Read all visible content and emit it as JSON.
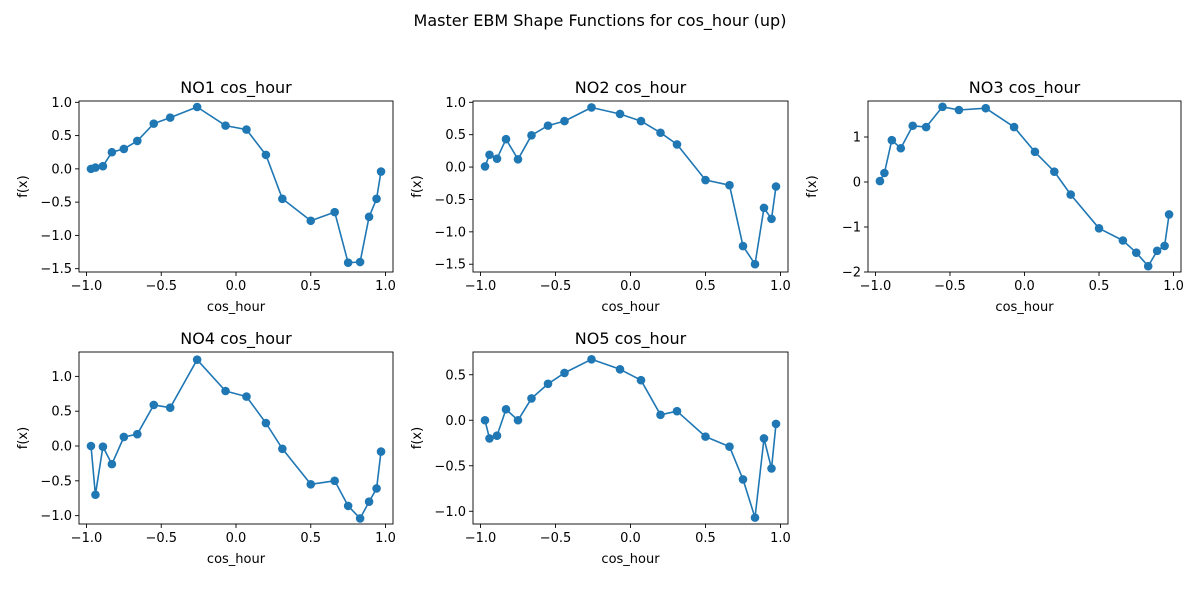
{
  "figure": {
    "suptitle": "Master EBM Shape Functions for cos_hour (up)"
  },
  "colors": {
    "series": "#1f77b4",
    "axes": "#000000"
  },
  "chart_data": [
    {
      "type": "line",
      "title": "NO1 cos_hour",
      "xlabel": "cos_hour",
      "ylabel": "f(x)",
      "xlim": [
        -1.05,
        1.05
      ],
      "ylim": [
        -1.55,
        1.02
      ],
      "xticks": [
        -1.0,
        -0.5,
        0.0,
        0.5,
        1.0
      ],
      "xtick_labels": [
        "−1.0",
        "−0.5",
        "0.0",
        "0.5",
        "1.0"
      ],
      "yticks": [
        -1.5,
        -1.0,
        -0.5,
        0.0,
        0.5,
        1.0
      ],
      "ytick_labels": [
        "−1.5",
        "−1.0",
        "−0.5",
        "0.0",
        "0.5",
        "1.0"
      ],
      "x": [
        -0.97,
        -0.94,
        -0.89,
        -0.83,
        -0.75,
        -0.66,
        -0.55,
        -0.44,
        -0.26,
        -0.07,
        0.07,
        0.2,
        0.31,
        0.5,
        0.66,
        0.75,
        0.83,
        0.89,
        0.94,
        0.97
      ],
      "y": [
        0.0,
        0.02,
        0.04,
        0.25,
        0.3,
        0.42,
        0.68,
        0.77,
        0.93,
        0.65,
        0.59,
        0.21,
        -0.45,
        -0.78,
        -0.65,
        -1.41,
        -1.4,
        -0.72,
        -0.45,
        -0.04
      ]
    },
    {
      "type": "line",
      "title": "NO2 cos_hour",
      "xlabel": "cos_hour",
      "ylabel": "f(x)",
      "xlim": [
        -1.05,
        1.05
      ],
      "ylim": [
        -1.62,
        1.02
      ],
      "xticks": [
        -1.0,
        -0.5,
        0.0,
        0.5,
        1.0
      ],
      "xtick_labels": [
        "−1.0",
        "−0.5",
        "0.0",
        "0.5",
        "1.0"
      ],
      "yticks": [
        -1.5,
        -1.0,
        -0.5,
        0.0,
        0.5,
        1.0
      ],
      "ytick_labels": [
        "−1.5",
        "−1.0",
        "−0.5",
        "0.0",
        "0.5",
        "1.0"
      ],
      "x": [
        -0.97,
        -0.94,
        -0.89,
        -0.83,
        -0.75,
        -0.66,
        -0.55,
        -0.44,
        -0.26,
        -0.07,
        0.07,
        0.2,
        0.31,
        0.5,
        0.66,
        0.75,
        0.83,
        0.89,
        0.94,
        0.97
      ],
      "y": [
        0.01,
        0.19,
        0.13,
        0.43,
        0.12,
        0.49,
        0.64,
        0.71,
        0.92,
        0.82,
        0.71,
        0.53,
        0.35,
        -0.2,
        -0.28,
        -1.22,
        -1.5,
        -0.63,
        -0.8,
        -0.3
      ]
    },
    {
      "type": "line",
      "title": "NO3 cos_hour",
      "xlabel": "cos_hour",
      "ylabel": "f(x)",
      "xlim": [
        -1.05,
        1.05
      ],
      "ylim": [
        -2.0,
        1.8
      ],
      "xticks": [
        -1.0,
        -0.5,
        0.0,
        0.5,
        1.0
      ],
      "xtick_labels": [
        "−1.0",
        "−0.5",
        "0.0",
        "0.5",
        "1.0"
      ],
      "yticks": [
        -2,
        -1,
        0,
        1
      ],
      "ytick_labels": [
        "−2",
        "−1",
        "0",
        "1"
      ],
      "x": [
        -0.97,
        -0.94,
        -0.89,
        -0.83,
        -0.75,
        -0.66,
        -0.55,
        -0.44,
        -0.26,
        -0.07,
        0.07,
        0.2,
        0.31,
        0.5,
        0.66,
        0.75,
        0.83,
        0.89,
        0.94,
        0.97
      ],
      "y": [
        0.02,
        0.2,
        0.93,
        0.75,
        1.25,
        1.22,
        1.67,
        1.6,
        1.64,
        1.22,
        0.67,
        0.23,
        -0.28,
        -1.03,
        -1.3,
        -1.57,
        -1.87,
        -1.53,
        -1.42,
        -0.72
      ]
    },
    {
      "type": "line",
      "title": "NO4 cos_hour",
      "xlabel": "cos_hour",
      "ylabel": "f(x)",
      "xlim": [
        -1.05,
        1.05
      ],
      "ylim": [
        -1.12,
        1.35
      ],
      "xticks": [
        -1.0,
        -0.5,
        0.0,
        0.5,
        1.0
      ],
      "xtick_labels": [
        "−1.0",
        "−0.5",
        "0.0",
        "0.5",
        "1.0"
      ],
      "yticks": [
        -1.0,
        -0.5,
        0.0,
        0.5,
        1.0
      ],
      "ytick_labels": [
        "−1.0",
        "−0.5",
        "0.0",
        "0.5",
        "1.0"
      ],
      "x": [
        -0.97,
        -0.94,
        -0.89,
        -0.83,
        -0.75,
        -0.66,
        -0.55,
        -0.44,
        -0.26,
        -0.07,
        0.07,
        0.2,
        0.31,
        0.5,
        0.66,
        0.75,
        0.83,
        0.89,
        0.94,
        0.97
      ],
      "y": [
        0.0,
        -0.7,
        -0.01,
        -0.26,
        0.13,
        0.17,
        0.59,
        0.55,
        1.24,
        0.79,
        0.71,
        0.33,
        -0.04,
        -0.55,
        -0.5,
        -0.86,
        -1.04,
        -0.8,
        -0.61,
        -0.08
      ]
    },
    {
      "type": "line",
      "title": "NO5 cos_hour",
      "xlabel": "cos_hour",
      "ylabel": "f(x)",
      "xlim": [
        -1.05,
        1.05
      ],
      "ylim": [
        -1.14,
        0.75
      ],
      "xticks": [
        -1.0,
        -0.5,
        0.0,
        0.5,
        1.0
      ],
      "xtick_labels": [
        "−1.0",
        "−0.5",
        "0.0",
        "0.5",
        "1.0"
      ],
      "yticks": [
        -1.0,
        -0.5,
        0.0,
        0.5
      ],
      "ytick_labels": [
        "−1.0",
        "−0.5",
        "0.0",
        "0.5"
      ],
      "x": [
        -0.97,
        -0.94,
        -0.89,
        -0.83,
        -0.75,
        -0.66,
        -0.55,
        -0.44,
        -0.26,
        -0.07,
        0.07,
        0.2,
        0.31,
        0.5,
        0.66,
        0.75,
        0.83,
        0.89,
        0.94,
        0.97
      ],
      "y": [
        0.0,
        -0.2,
        -0.17,
        0.12,
        0.0,
        0.24,
        0.4,
        0.52,
        0.67,
        0.56,
        0.44,
        0.06,
        0.1,
        -0.18,
        -0.29,
        -0.65,
        -1.07,
        -0.2,
        -0.53,
        -0.04
      ]
    }
  ]
}
